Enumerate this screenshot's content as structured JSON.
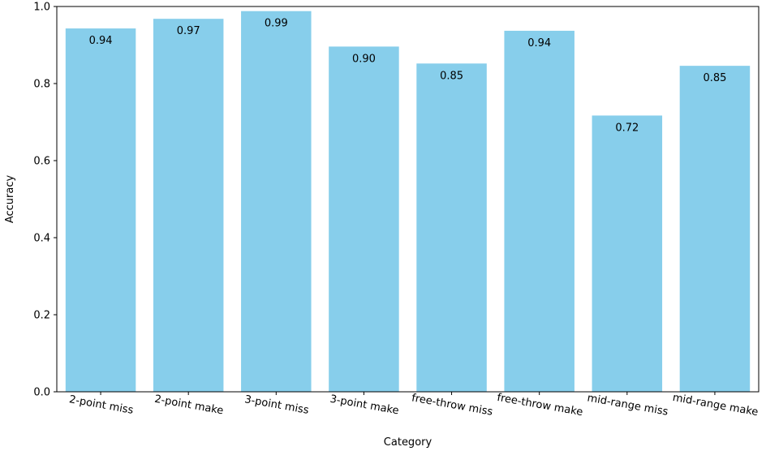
{
  "chart_data": {
    "type": "bar",
    "categories": [
      "2-point miss",
      "2-point make",
      "3-point miss",
      "3-point make",
      "free-throw miss",
      "free-throw make",
      "mid-range miss",
      "mid-range make"
    ],
    "values": [
      0.943,
      0.968,
      0.988,
      0.896,
      0.852,
      0.937,
      0.717,
      0.846
    ],
    "data_labels": [
      "0.94",
      "0.97",
      "0.99",
      "0.90",
      "0.85",
      "0.94",
      "0.72",
      "0.85"
    ],
    "xlabel": "Category",
    "ylabel": "Accuracy",
    "ylim": [
      0,
      1.0
    ],
    "yticks": [
      0.0,
      0.2,
      0.4,
      0.6,
      0.8,
      1.0
    ],
    "ytick_labels": [
      "0.0",
      "0.2",
      "0.4",
      "0.6",
      "0.8",
      "1.0"
    ],
    "bar_color": "#87ceeb",
    "grid": false,
    "legend": "none"
  }
}
